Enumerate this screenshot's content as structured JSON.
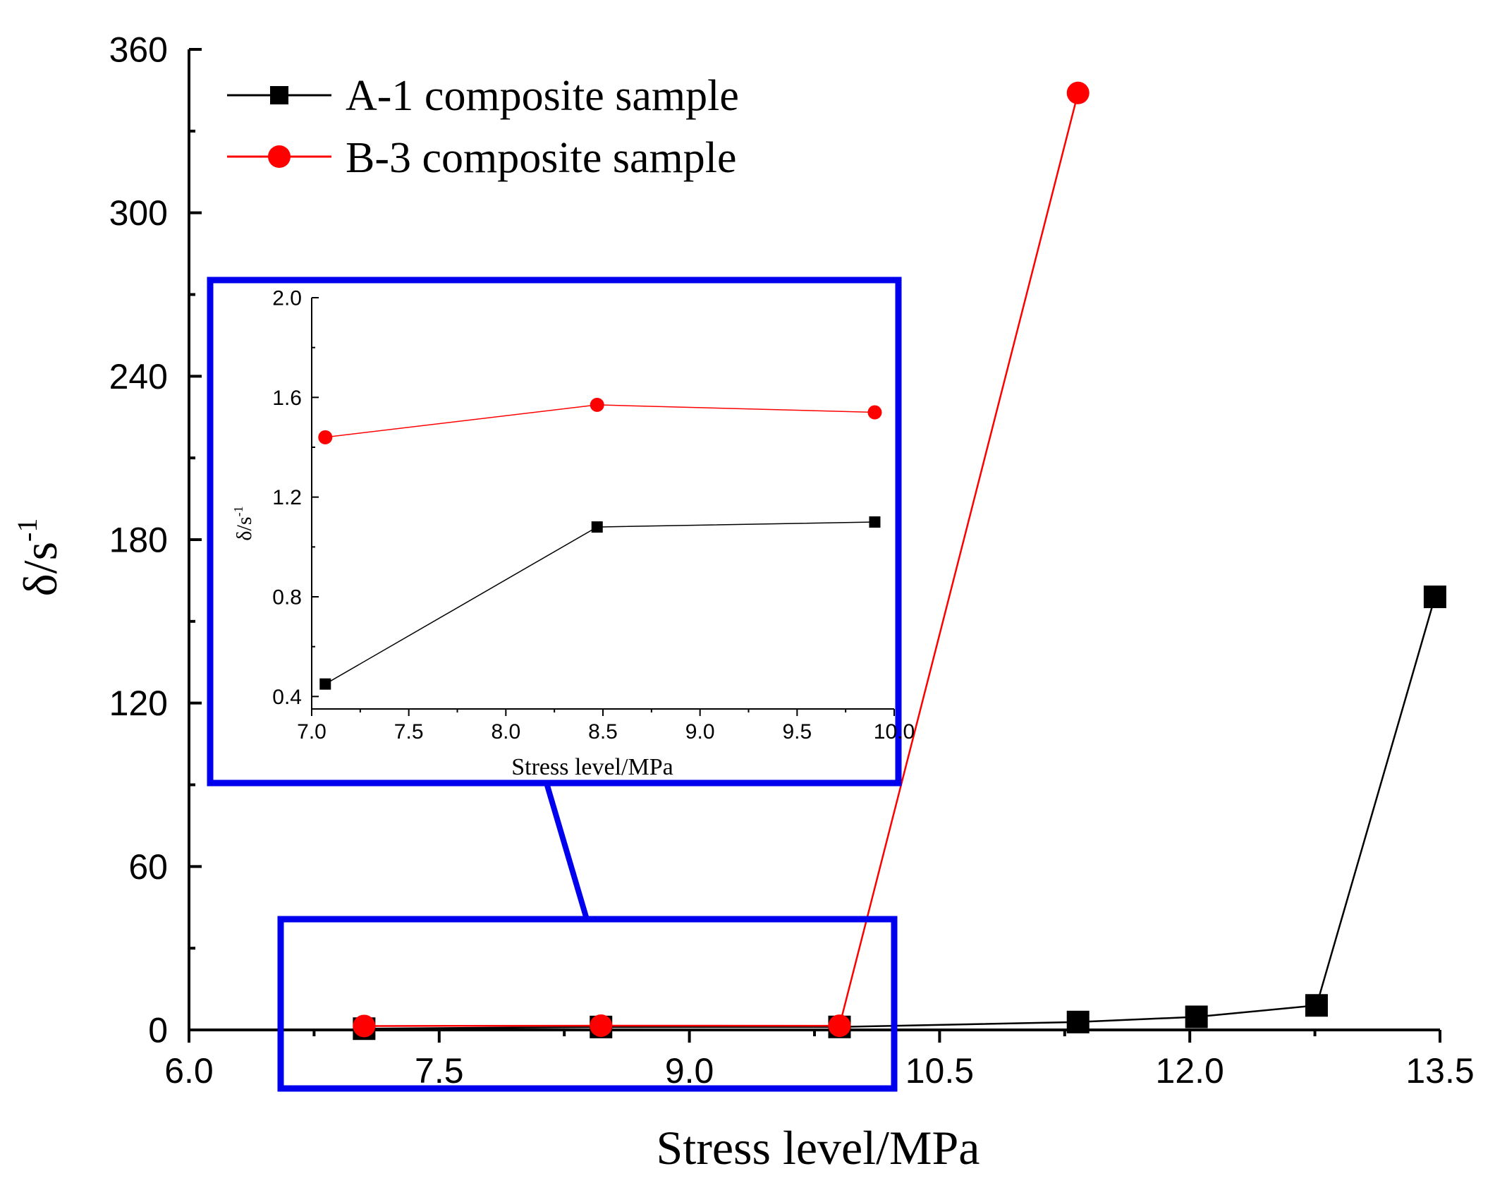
{
  "chart_data": [
    {
      "type": "line",
      "role": "main",
      "xlabel": "Stress level/MPa",
      "ylabel_base": "δ/s",
      "ylabel_sup": "-1",
      "xlim": [
        6.0,
        13.5
      ],
      "ylim": [
        0,
        360
      ],
      "xticks": [
        6.0,
        7.5,
        9.0,
        10.5,
        12.0,
        13.5
      ],
      "xtick_labels": [
        "6.0",
        "7.5",
        "9.0",
        "10.5",
        "12.0",
        "13.5"
      ],
      "yticks": [
        0,
        60,
        120,
        180,
        240,
        300,
        360
      ],
      "ytick_labels": [
        "0",
        "60",
        "120",
        "180",
        "240",
        "300",
        "360"
      ],
      "legend": [
        "A-1 composite sample",
        "B-3 composite sample"
      ],
      "legend_position": "top-left",
      "series": [
        {
          "name": "A-1 composite sample",
          "color": "#000000",
          "marker": "square",
          "x": [
            7.05,
            8.47,
            9.9,
            11.33,
            12.04,
            12.76,
            13.47
          ],
          "y": [
            0.46,
            1.08,
            1.1,
            2.9,
            4.8,
            9.0,
            159
          ]
        },
        {
          "name": "B-3 composite sample",
          "color": "#ff0000",
          "marker": "circle",
          "x": [
            7.05,
            8.47,
            9.9,
            11.33
          ],
          "y": [
            1.44,
            1.56,
            1.53,
            344
          ]
        }
      ]
    },
    {
      "type": "line",
      "role": "inset",
      "xlabel": "Stress level/MPa",
      "ylabel_base": "δ/s",
      "ylabel_sup": "-1",
      "xlim": [
        7.0,
        10.0
      ],
      "ylim": [
        0.35,
        2.0
      ],
      "xticks": [
        7.0,
        7.5,
        8.0,
        8.5,
        9.0,
        9.5,
        10.0
      ],
      "xtick_labels": [
        "7.0",
        "7.5",
        "8.0",
        "8.5",
        "9.0",
        "9.5",
        "10.0"
      ],
      "yticks": [
        0.4,
        0.8,
        1.2,
        1.6,
        2.0
      ],
      "ytick_labels": [
        "0.4",
        "0.8",
        "1.2",
        "1.6",
        "2.0"
      ],
      "series": [
        {
          "name": "A-1 composite sample",
          "color": "#000000",
          "marker": "square",
          "x": [
            7.07,
            8.47,
            9.9
          ],
          "y": [
            0.45,
            1.08,
            1.1
          ]
        },
        {
          "name": "B-3 composite sample",
          "color": "#ff0000",
          "marker": "circle",
          "x": [
            7.07,
            8.47,
            9.9
          ],
          "y": [
            1.44,
            1.57,
            1.54
          ]
        }
      ]
    }
  ],
  "annotation_color": "#0000ee"
}
